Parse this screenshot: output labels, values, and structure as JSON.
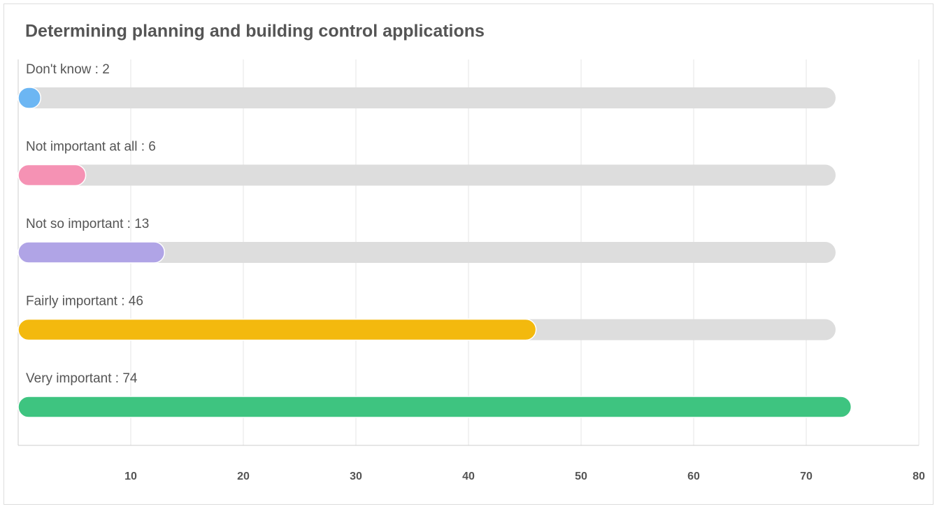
{
  "chart_data": {
    "type": "bar",
    "orientation": "horizontal",
    "title": "Determining planning and building control applications",
    "categories": [
      "Don't know : 2",
      "Not important at all : 6",
      "Not so important : 13",
      "Fairly important : 46",
      "Very important : 74"
    ],
    "values": [
      2,
      6,
      13,
      46,
      74
    ],
    "colors": [
      "#6cb6f3",
      "#f592b4",
      "#b0a4e6",
      "#f3b90e",
      "#3ec480"
    ],
    "xlim": [
      0,
      80
    ],
    "xticks": [
      10,
      20,
      30,
      40,
      50,
      60,
      70,
      80
    ],
    "grid": true
  }
}
